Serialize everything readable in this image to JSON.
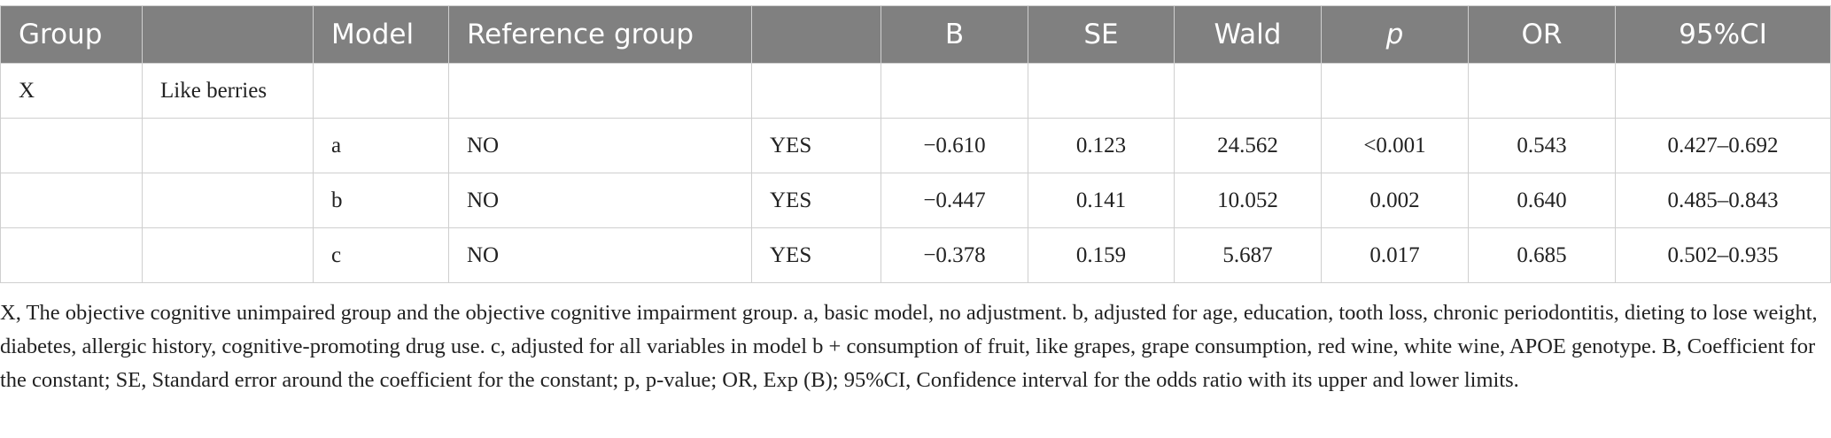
{
  "table": {
    "header": [
      "Group",
      null,
      "Model",
      "Reference group",
      null,
      "B",
      "SE",
      "Wald",
      "p",
      "OR",
      "95%CI"
    ],
    "rows": [
      [
        "X",
        "Like berries",
        null,
        null,
        null,
        null,
        null,
        null,
        null,
        null,
        null
      ],
      [
        null,
        null,
        "a",
        "NO",
        "YES",
        "−0.610",
        "0.123",
        "24.562",
        "<0.001",
        "0.543",
        "0.427–0.692"
      ],
      [
        null,
        null,
        "b",
        "NO",
        "YES",
        "−0.447",
        "0.141",
        "10.052",
        "0.002",
        "0.640",
        "0.485–0.843"
      ],
      [
        null,
        null,
        "c",
        "NO",
        "YES",
        "−0.378",
        "0.159",
        "5.687",
        "0.017",
        "0.685",
        "0.502–0.935"
      ]
    ],
    "footnote": "X, The objective cognitive unimpaired group and the objective cognitive impairment group. a, basic model, no adjustment. b, adjusted for age, education, tooth loss, chronic periodontitis, dieting to lose weight, diabetes, allergic history, cognitive-promoting drug use. c, adjusted for all variables in model b + consumption of fruit, like grapes, grape consumption, red wine, white wine, APOE genotype. B, Coefficient for the constant; SE, Standard error around the coefficient for the constant; p, p-value; OR, Exp (B); 95%CI, Confidence interval for the odds ratio with its upper and lower limits."
  }
}
